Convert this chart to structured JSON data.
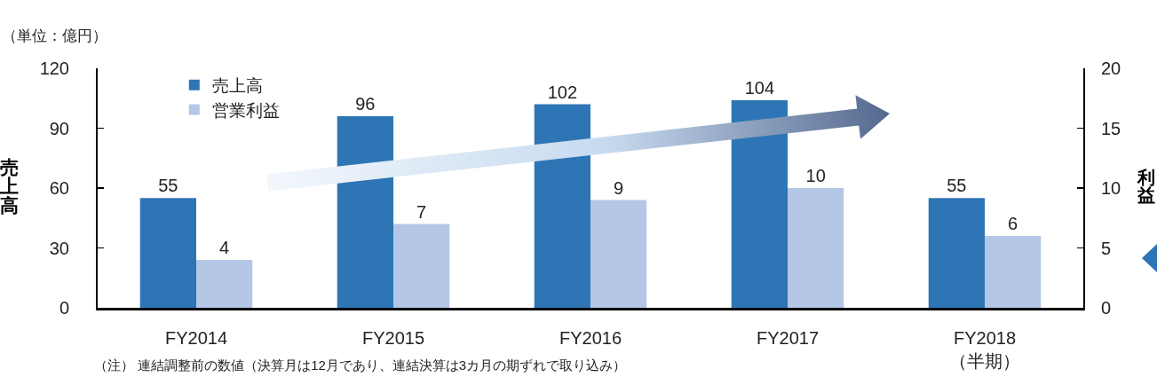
{
  "chart_data": {
    "type": "bar",
    "annotations": [
      "（単位：億円）",
      "（注） 連結調整前の数値（決算月は12月であり、連結決算は3カ月の期ずれで取り込み）"
    ],
    "ylabel": "売上高",
    "y2label": "利益",
    "categories": [
      "FY2014",
      "FY2015",
      "FY2016",
      "FY2017",
      "FY2018\n（半期）"
    ],
    "series": [
      {
        "name": "売上高",
        "color": "#2e75b6",
        "values": [
          55,
          96,
          102,
          104,
          55
        ]
      },
      {
        "name": "営業利益",
        "color": "#b4c7e7",
        "values": [
          4,
          7,
          9,
          10,
          6
        ],
        "axis": "y2"
      }
    ],
    "ylim": [
      0,
      120
    ],
    "yticks": [
      0,
      30,
      60,
      90,
      120
    ],
    "y2lim": [
      0,
      20
    ],
    "y2ticks": [
      0,
      5,
      10,
      15,
      20
    ],
    "data_labels": true,
    "legend": "top left"
  }
}
